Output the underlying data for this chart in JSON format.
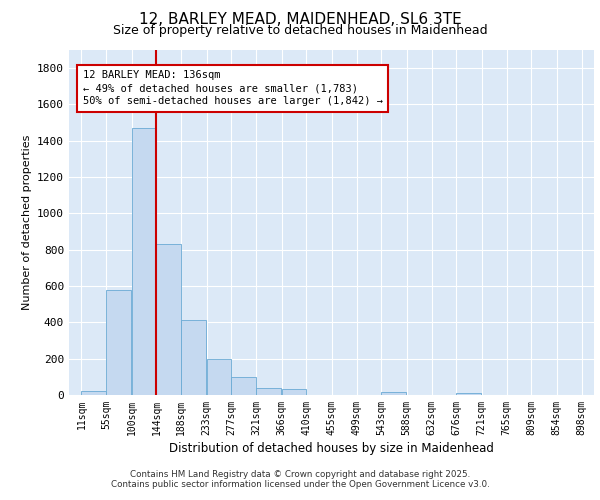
{
  "title_line1": "12, BARLEY MEAD, MAIDENHEAD, SL6 3TE",
  "title_line2": "Size of property relative to detached houses in Maidenhead",
  "xlabel": "Distribution of detached houses by size in Maidenhead",
  "ylabel": "Number of detached properties",
  "bin_labels": [
    "11sqm",
    "55sqm",
    "100sqm",
    "144sqm",
    "188sqm",
    "233sqm",
    "277sqm",
    "321sqm",
    "366sqm",
    "410sqm",
    "455sqm",
    "499sqm",
    "543sqm",
    "588sqm",
    "632sqm",
    "676sqm",
    "721sqm",
    "765sqm",
    "809sqm",
    "854sqm",
    "898sqm"
  ],
  "bin_edges": [
    11,
    55,
    100,
    144,
    188,
    233,
    277,
    321,
    366,
    410,
    455,
    499,
    543,
    588,
    632,
    676,
    721,
    765,
    809,
    854,
    898
  ],
  "bar_heights": [
    20,
    580,
    1470,
    830,
    415,
    200,
    100,
    40,
    35,
    0,
    0,
    0,
    15,
    0,
    0,
    10,
    0,
    0,
    0,
    0
  ],
  "bar_color": "#c5d9f0",
  "bar_edge_color": "#6aaad4",
  "background_color": "#dce9f7",
  "grid_color": "#ffffff",
  "vline_x": 144,
  "vline_color": "#cc0000",
  "annotation_line1": "12 BARLEY MEAD: 136sqm",
  "annotation_line2": "← 49% of detached houses are smaller (1,783)",
  "annotation_line3": "50% of semi-detached houses are larger (1,842) →",
  "annotation_box_color": "#cc0000",
  "ylim_max": 1900,
  "yticks": [
    0,
    200,
    400,
    600,
    800,
    1000,
    1200,
    1400,
    1600,
    1800
  ],
  "footer_line1": "Contains HM Land Registry data © Crown copyright and database right 2025.",
  "footer_line2": "Contains public sector information licensed under the Open Government Licence v3.0."
}
